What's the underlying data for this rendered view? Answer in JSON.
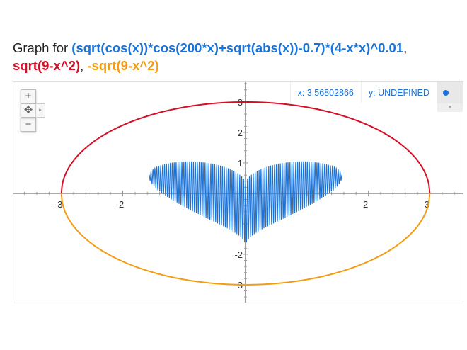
{
  "title": {
    "prefix": "Graph for ",
    "formulas": [
      "(sqrt(cos(x))*cos(200*x)+sqrt(abs(x))-0.7)*(4-x*x)^0.01",
      "sqrt(9-x^2)",
      "-sqrt(9-x^2)"
    ],
    "separator": ", "
  },
  "readout": {
    "x": "x: 3.56802866",
    "y": "y: UNDEFINED",
    "dot_color": "#1a73d8"
  },
  "controls": {
    "zoom_in": "+",
    "pan": "✥",
    "zoom_out": "−",
    "expand": "▸",
    "dropdown": "▾"
  },
  "chart_data": {
    "type": "line",
    "xlim": [
      -3.78,
      3.56
    ],
    "ylim": [
      -3.63,
      3.65
    ],
    "x_tick_labels": [
      "-3",
      "-2",
      "2",
      "3"
    ],
    "y_tick_labels": [
      "3",
      "2",
      "1",
      "-2",
      "-3"
    ],
    "grid": false,
    "series": [
      {
        "formula": "(sqrt(cos(x))*cos(200*x)+sqrt(abs(x))-0.7)*(4-x*x)^0.01",
        "color": "#1a73d8",
        "domain": [
          -1.5708,
          1.5708
        ]
      },
      {
        "formula": "sqrt(9-x^2)",
        "color": "#d50f25",
        "domain": [
          -3,
          3
        ]
      },
      {
        "formula": "-sqrt(9-x^2)",
        "color": "#f39c12",
        "domain": [
          -3,
          3
        ]
      }
    ]
  }
}
